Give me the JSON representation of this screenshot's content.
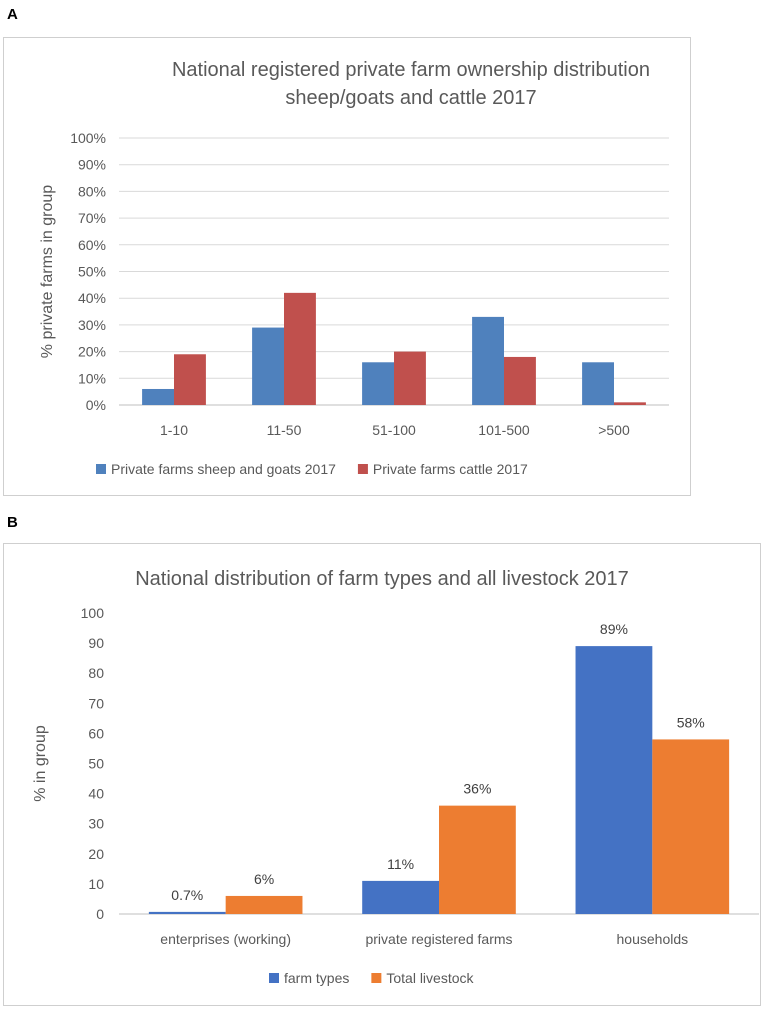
{
  "panel_labels": {
    "a": "A",
    "b": "B"
  },
  "chart_data": [
    {
      "type": "bar",
      "title_lines": [
        "National registered private farm ownership distribution",
        "sheep/goats and cattle 2017"
      ],
      "categories": [
        "1-10",
        "11-50",
        "51-100",
        "101-500",
        ">500"
      ],
      "series": [
        {
          "name": "Private farms sheep and goats 2017",
          "color": "#4f81bd",
          "values": [
            6,
            29,
            16,
            33,
            16
          ]
        },
        {
          "name": "Private farms cattle 2017",
          "color": "#c0504d",
          "values": [
            19,
            42,
            20,
            18,
            1
          ]
        }
      ],
      "ylabel": "% private farms in group",
      "xlabel": "",
      "ylim": [
        0,
        100
      ],
      "yticks": [
        "0%",
        "10%",
        "20%",
        "30%",
        "40%",
        "50%",
        "60%",
        "70%",
        "80%",
        "90%",
        "100%"
      ],
      "grid": true,
      "legend": "bottom"
    },
    {
      "type": "bar",
      "title_lines": [
        "National distribution of farm types and all livestock 2017"
      ],
      "categories": [
        "enterprises (working)",
        "private registered farms",
        "households"
      ],
      "series": [
        {
          "name": "farm types",
          "color": "#4472c4",
          "values": [
            0.7,
            11,
            89
          ],
          "labels": [
            "0.7%",
            "11%",
            "89%"
          ]
        },
        {
          "name": "Total livestock",
          "color": "#ed7d31",
          "values": [
            6,
            36,
            58
          ],
          "labels": [
            "6%",
            "36%",
            "58%"
          ]
        }
      ],
      "ylabel": "% in group",
      "xlabel": "",
      "ylim": [
        0,
        100
      ],
      "yticks": [
        "0",
        "10",
        "20",
        "30",
        "40",
        "50",
        "60",
        "70",
        "80",
        "90",
        "100"
      ],
      "grid": false,
      "legend": "bottom"
    }
  ]
}
